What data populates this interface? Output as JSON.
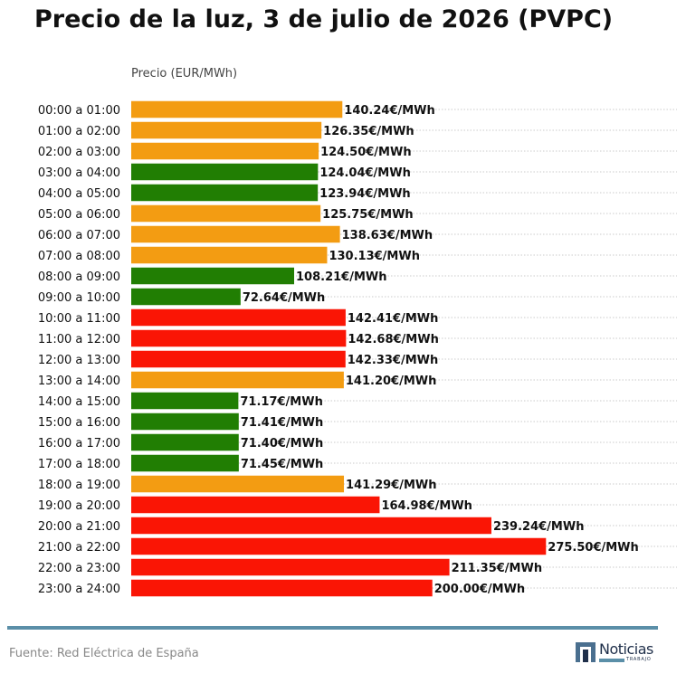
{
  "chart_data": {
    "type": "bar",
    "orientation": "horizontal",
    "title": "Precio de la luz, 3 de julio de 2026 (PVPC)",
    "xlabel": "Precio (EUR/MWh)",
    "value_suffix": "€/MWh",
    "xlim": [
      0,
      290
    ],
    "grid": true,
    "categories": [
      "00:00 a 01:00",
      "01:00 a 02:00",
      "02:00 a 03:00",
      "03:00 a 04:00",
      "04:00 a 05:00",
      "05:00 a 06:00",
      "06:00 a 07:00",
      "07:00 a 08:00",
      "08:00 a 09:00",
      "09:00 a 10:00",
      "10:00 a 11:00",
      "11:00 a 12:00",
      "12:00 a 13:00",
      "13:00 a 14:00",
      "14:00 a 15:00",
      "15:00 a 16:00",
      "16:00 a 17:00",
      "17:00 a 18:00",
      "18:00 a 19:00",
      "19:00 a 20:00",
      "20:00 a 21:00",
      "21:00 a 22:00",
      "22:00 a 23:00",
      "23:00 a 24:00"
    ],
    "values": [
      140.24,
      126.35,
      124.5,
      124.04,
      123.94,
      125.75,
      138.63,
      130.13,
      108.21,
      72.64,
      142.41,
      142.68,
      142.33,
      141.2,
      71.17,
      71.41,
      71.4,
      71.45,
      141.29,
      164.98,
      239.24,
      275.5,
      211.35,
      200.0
    ],
    "bar_colors": [
      "#f39c12",
      "#f39c12",
      "#f39c12",
      "#217e03",
      "#217e03",
      "#f39c12",
      "#f39c12",
      "#f39c12",
      "#217e03",
      "#217e03",
      "#fa1505",
      "#fa1505",
      "#fa1505",
      "#f39c12",
      "#217e03",
      "#217e03",
      "#217e03",
      "#217e03",
      "#f39c12",
      "#fa1505",
      "#fa1505",
      "#fa1505",
      "#fa1505",
      "#fa1505"
    ]
  },
  "footer": {
    "source": "Fuente: Red Eléctrica de España",
    "logo_text": "Noticias",
    "logo_subtext": "TRABAJO"
  }
}
